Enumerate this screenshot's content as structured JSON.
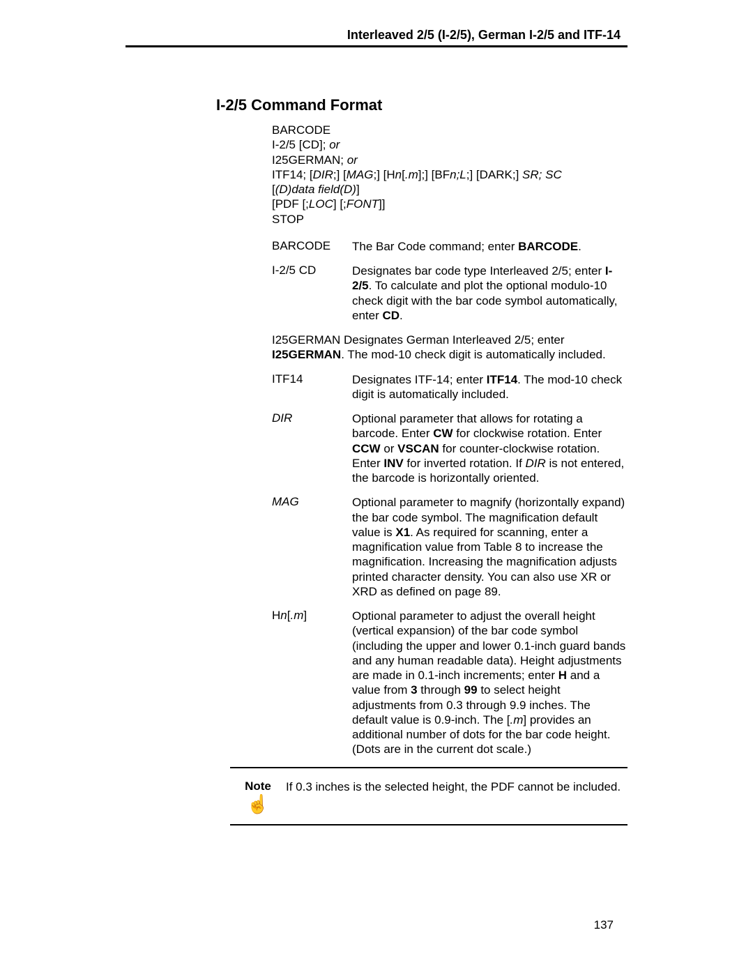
{
  "header": {
    "title": "Interleaved 2/5 (I-2/5), German I-2/5 and ITF-14"
  },
  "section_title": "I-2/5 Command Format",
  "syntax": {
    "line1": "BARCODE",
    "line2_pre": "I-2/5 [CD]; ",
    "line2_or": "or",
    "line3_pre": "I25GERMAN; ",
    "line3_or": "or",
    "line4_a": "ITF14; [",
    "line4_dir": "DIR",
    "line4_b": ";] [",
    "line4_mag": "MAG",
    "line4_c": ";] [H",
    "line4_n1": "n",
    "line4_d": "[",
    "line4_m1": ".m",
    "line4_e": "];] [BF",
    "line4_n2": "n;L",
    "line4_f": ";] [DARK;] ",
    "line4_srsc": "SR; SC",
    "line5_a": "[",
    "line5_b": "(D)data field(D)",
    "line5_c": "]",
    "line6_a": "[PDF [;",
    "line6_loc": "LOC",
    "line6_b": "] [;",
    "line6_font": "FONT",
    "line6_c": "]]",
    "line7": "STOP"
  },
  "params": {
    "barcode": {
      "term": "BARCODE",
      "def_a": "The Bar Code command; enter ",
      "def_b": "BARCODE",
      "def_c": "."
    },
    "i25cd": {
      "term": "I-2/5 CD",
      "def_a": "Designates bar code type Interleaved 2/5; enter ",
      "def_b": "I-2/5",
      "def_c": ". To calculate and plot the optional modulo-10 check digit with the bar code symbol automatically, enter ",
      "def_d": "CD",
      "def_e": "."
    },
    "i25german": {
      "term": "I25GERMAN",
      "def_a": " Designates German Interleaved 2/5; enter ",
      "def_b": "I25GERMAN",
      "def_c": ". The mod-10 check digit is automatically included."
    },
    "itf14": {
      "term": "ITF14",
      "def_a": "Designates ITF-14; enter ",
      "def_b": "ITF14",
      "def_c": ". The mod-10 check digit is automatically included."
    },
    "dir": {
      "term": "DIR",
      "def_a": "Optional parameter that allows for rotating a barcode. Enter ",
      "def_b": "CW",
      "def_c": " for clockwise rotation. Enter ",
      "def_d": "CCW",
      "def_e": " or ",
      "def_f": "VSCAN",
      "def_g": " for counter-clockwise rotation. Enter ",
      "def_h": "INV",
      "def_i": " for inverted rotation. If ",
      "def_j": "DIR",
      "def_k": " is not entered, the barcode is horizontally oriented."
    },
    "mag": {
      "term": "MAG",
      "def_a": "Optional parameter to magnify (horizontally expand) the bar code symbol. The magnification default value is ",
      "def_b": "X1",
      "def_c": ". As required for scanning, enter a magnification value from Table 8 to increase the magnification. Increasing the magnification adjusts printed character density. You can also use XR or XRD as defined on page 89."
    },
    "hnm": {
      "term_a": "H",
      "term_b": "n",
      "term_c": "[",
      "term_d": ".m",
      "term_e": "]",
      "def_a": "Optional parameter to adjust the overall height (vertical expansion) of the bar code symbol (including the upper and lower 0.1-inch guard bands and any human readable data). Height adjustments are made in 0.1-inch increments; enter ",
      "def_b": "H",
      "def_c": " and a value from ",
      "def_d": "3",
      "def_e": " through ",
      "def_f": "99",
      "def_g": " to select height adjustments from 0.3 through 9.9 inches. The default value is 0.9-inch. The [",
      "def_h": ".m",
      "def_i": "] provides an additional number of dots for the bar code height. (Dots are in the current dot scale.)"
    }
  },
  "note": {
    "label": "Note",
    "text": "If 0.3 inches is the selected height, the PDF cannot be included."
  },
  "page_number": "137"
}
